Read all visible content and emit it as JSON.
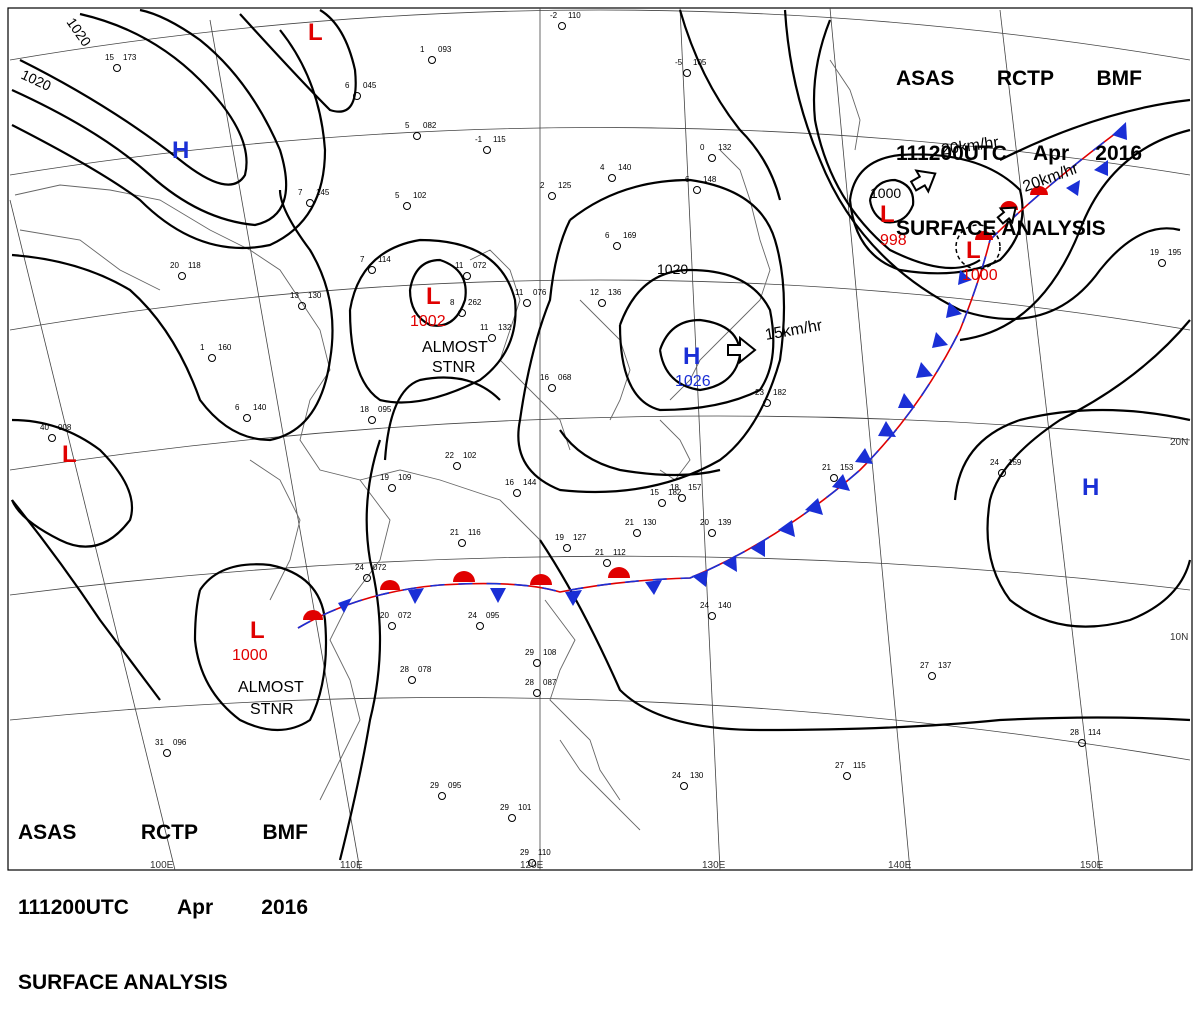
{
  "header": {
    "agency": "ASAS",
    "station": "RCTP",
    "office": "BMF",
    "time": "111200UTC",
    "month": "Apr",
    "year": "2016",
    "subtitle": "SURFACE ANALYSIS"
  },
  "pressure_centers": [
    {
      "id": "low-nw",
      "type": "L",
      "value": ""
    },
    {
      "id": "high-nw",
      "type": "H",
      "value": ""
    },
    {
      "id": "low-central",
      "type": "L",
      "value": "1002"
    },
    {
      "id": "high-japan",
      "type": "H",
      "value": "1026"
    },
    {
      "id": "low-ne",
      "type": "L",
      "value": "998"
    },
    {
      "id": "low-ne2",
      "type": "L",
      "value": "1000"
    },
    {
      "id": "low-west",
      "type": "L",
      "value": ""
    },
    {
      "id": "low-sw",
      "type": "L",
      "value": "1000"
    },
    {
      "id": "high-east",
      "type": "H",
      "value": ""
    }
  ],
  "isobar_labels": [
    "1020",
    "1020",
    "1020",
    "1000"
  ],
  "annotations": [
    {
      "id": "stnr-central",
      "lines": [
        "ALMOST",
        "STNR"
      ]
    },
    {
      "id": "stnr-sw",
      "lines": [
        "ALMOST",
        "STNR"
      ]
    }
  ],
  "motion_vectors": [
    {
      "id": "move-high",
      "speed": "15km/hr"
    },
    {
      "id": "move-low-ne",
      "speed": "20km/hr"
    },
    {
      "id": "move-low-ne2",
      "speed": "20km/hr"
    }
  ],
  "lat_labels": [
    "20N",
    "10N"
  ],
  "lon_labels": [
    "100E",
    "110E",
    "120E",
    "130E",
    "140E",
    "150E"
  ],
  "stations": [
    [
      "15",
      "173"
    ],
    [
      "6",
      "045"
    ],
    [
      "1",
      "093"
    ],
    [
      "5",
      "082"
    ],
    [
      "-1",
      "115"
    ],
    [
      "-2",
      "110"
    ],
    [
      "-5",
      "105"
    ],
    [
      "0",
      "132"
    ],
    [
      "7",
      "145"
    ],
    [
      "5",
      "102"
    ],
    [
      "4",
      "140"
    ],
    [
      "2",
      "125"
    ],
    [
      "6",
      "148"
    ],
    [
      "6",
      "169"
    ],
    [
      "7",
      "114"
    ],
    [
      "11",
      "072"
    ],
    [
      "11",
      "076"
    ],
    [
      "12",
      "136"
    ],
    [
      "8",
      "262"
    ],
    [
      "11",
      "132"
    ],
    [
      "20",
      "118"
    ],
    [
      "13",
      "130"
    ],
    [
      "1",
      "160"
    ],
    [
      "6",
      "140"
    ],
    [
      "18",
      "095"
    ],
    [
      "16",
      "068"
    ],
    [
      "22",
      "102"
    ],
    [
      "19",
      "109"
    ],
    [
      "16",
      "144"
    ],
    [
      "15",
      "182"
    ],
    [
      "18",
      "157"
    ],
    [
      "21",
      "130"
    ],
    [
      "20",
      "139"
    ],
    [
      "19",
      "127"
    ],
    [
      "21",
      "112"
    ],
    [
      "21",
      "116"
    ],
    [
      "24",
      "072"
    ],
    [
      "20",
      "072"
    ],
    [
      "24",
      "095"
    ],
    [
      "24",
      "140"
    ],
    [
      "28",
      "078"
    ],
    [
      "29",
      "108"
    ],
    [
      "28",
      "087"
    ],
    [
      "29",
      "095"
    ],
    [
      "29",
      "101"
    ],
    [
      "29",
      "110"
    ],
    [
      "24",
      "130"
    ],
    [
      "27",
      "137"
    ],
    [
      "27",
      "115"
    ],
    [
      "28",
      "114"
    ],
    [
      "24",
      "159"
    ],
    [
      "19",
      "195"
    ],
    [
      "40",
      "008"
    ],
    [
      "31",
      "096"
    ],
    [
      "21",
      "153"
    ],
    [
      "23",
      "182"
    ]
  ]
}
